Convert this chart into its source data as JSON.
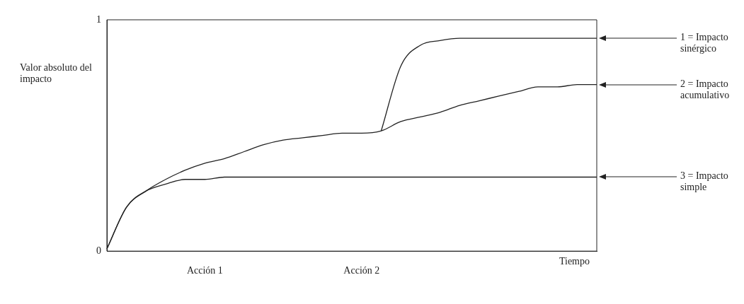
{
  "chart_data": {
    "type": "line",
    "ylabel": "Valor absoluto del impacto",
    "xlabel": "Tiempo",
    "categories": [
      null,
      null,
      null,
      null,
      null,
      "Acción 1",
      null,
      null,
      null,
      null,
      null,
      null,
      null,
      "Acción 2",
      null,
      null,
      null,
      null,
      null,
      null,
      null,
      null,
      null,
      null,
      null,
      null
    ],
    "ylim": [
      0,
      1
    ],
    "yticks": [
      0,
      1
    ],
    "grid": false,
    "legend": false,
    "series": [
      {
        "name": "1 = Impacto sinérgico",
        "color": "#222222",
        "values": [
          null,
          null,
          null,
          null,
          null,
          null,
          null,
          null,
          null,
          null,
          null,
          null,
          null,
          null,
          0.52,
          0.8,
          0.89,
          0.91,
          0.92,
          0.92,
          0.92,
          0.92,
          0.92,
          0.92,
          0.92,
          0.92
        ]
      },
      {
        "name": "2 = Impacto acumulativo",
        "color": "#222222",
        "values": [
          0.01,
          0.19,
          0.26,
          0.31,
          0.35,
          0.38,
          0.4,
          0.43,
          0.46,
          0.48,
          0.49,
          0.5,
          0.51,
          0.51,
          0.52,
          0.56,
          0.58,
          0.6,
          0.63,
          0.65,
          0.67,
          0.69,
          0.71,
          0.71,
          0.72,
          0.72
        ]
      },
      {
        "name": "3 = Impacto simple",
        "color": "#222222",
        "values": [
          0.01,
          0.19,
          0.26,
          0.29,
          0.31,
          0.31,
          0.32,
          0.32,
          0.32,
          0.32,
          0.32,
          0.32,
          0.32,
          0.32,
          0.32,
          0.32,
          0.32,
          0.32,
          0.32,
          0.32,
          0.32,
          0.32,
          0.32,
          0.32,
          0.32,
          0.32
        ]
      }
    ]
  }
}
